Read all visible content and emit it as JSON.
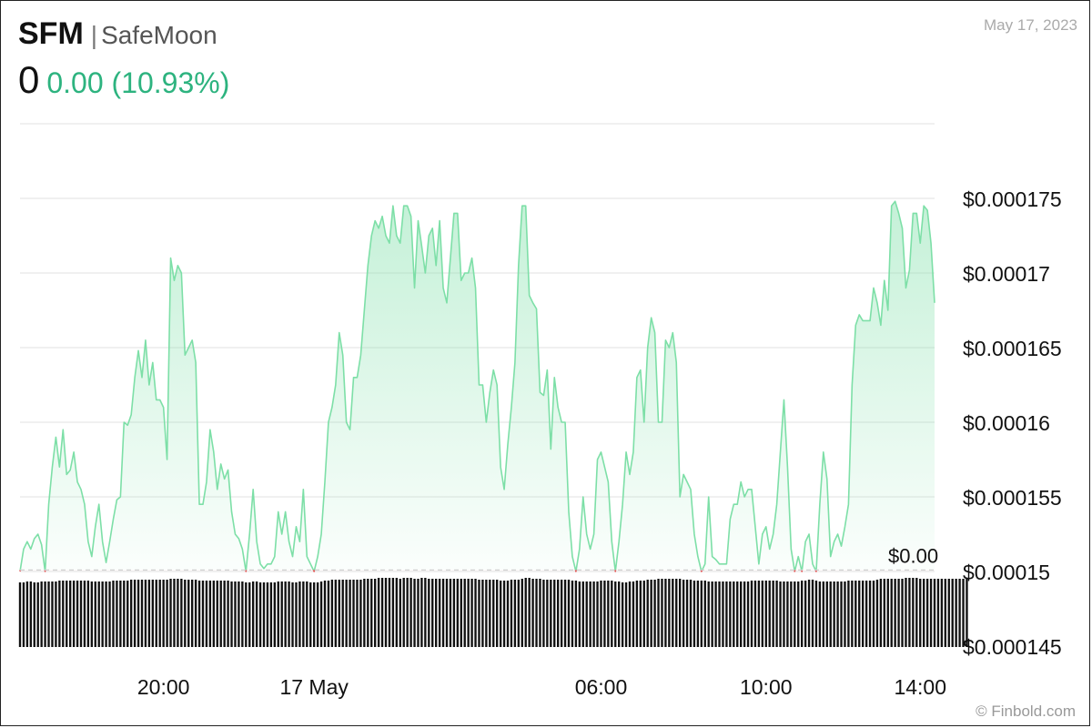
{
  "header": {
    "ticker": "SFM",
    "separator": "|",
    "name": "SafeMoon",
    "price": "0",
    "change": "0.00 (10.93%)",
    "date": "May 17, 2023"
  },
  "credit": "© Finbold.com",
  "colors": {
    "up": "#7ddfa7",
    "down": "#e45a5a",
    "change_text": "#2db37f",
    "grid": "#e1e1e1",
    "volume": "#111111"
  },
  "chart_data": {
    "type": "area",
    "title": "",
    "xlabel": "",
    "ylabel": "",
    "ylim": [
      0.000143,
      0.00018
    ],
    "baseline": {
      "value": 0.0001501,
      "label": "$0.00"
    },
    "y_ticks": [
      {
        "value": 0.000175,
        "label": "$0.000175"
      },
      {
        "value": 0.00017,
        "label": "$0.00017"
      },
      {
        "value": 0.000165,
        "label": "$0.000165"
      },
      {
        "value": 0.00016,
        "label": "$0.00016"
      },
      {
        "value": 0.000155,
        "label": "$0.000155"
      },
      {
        "value": 0.00015,
        "label": "$0.00015"
      },
      {
        "value": 0.000145,
        "label": "$0.000145"
      }
    ],
    "x_ticks": [
      {
        "index": 40,
        "label": "20:00"
      },
      {
        "index": 82,
        "label": "17 May"
      },
      {
        "index": 162,
        "label": "06:00"
      },
      {
        "index": 208,
        "label": "10:00"
      },
      {
        "index": 251,
        "label": "14:00"
      }
    ],
    "series": [
      {
        "values": [
          0.00015,
          0.0001515,
          0.000152,
          0.0001515,
          0.0001522,
          0.0001525,
          0.0001518,
          0.00015,
          0.0001545,
          0.000157,
          0.000159,
          0.000157,
          0.0001595,
          0.0001565,
          0.0001568,
          0.000158,
          0.000156,
          0.0001555,
          0.0001545,
          0.000152,
          0.000151,
          0.000153,
          0.0001545,
          0.000152,
          0.0001506,
          0.000152,
          0.0001535,
          0.0001548,
          0.000155,
          0.00016,
          0.0001598,
          0.0001605,
          0.000163,
          0.0001648,
          0.000163,
          0.0001655,
          0.0001625,
          0.000164,
          0.0001615,
          0.0001615,
          0.000161,
          0.0001575,
          0.000171,
          0.0001695,
          0.0001705,
          0.00017,
          0.0001645,
          0.000165,
          0.0001655,
          0.000164,
          0.0001545,
          0.0001545,
          0.000156,
          0.0001595,
          0.000158,
          0.0001555,
          0.0001572,
          0.0001562,
          0.0001568,
          0.000154,
          0.0001525,
          0.0001522,
          0.0001515,
          0.00015,
          0.0001525,
          0.0001555,
          0.000152,
          0.0001505,
          0.0001502,
          0.0001505,
          0.0001505,
          0.000151,
          0.000154,
          0.0001525,
          0.000154,
          0.000152,
          0.000151,
          0.000153,
          0.000152,
          0.0001555,
          0.000151,
          0.0001505,
          0.00015,
          0.000151,
          0.0001525,
          0.000156,
          0.00016,
          0.000161,
          0.0001625,
          0.000166,
          0.0001645,
          0.00016,
          0.0001595,
          0.000163,
          0.000163,
          0.0001645,
          0.0001675,
          0.0001705,
          0.0001725,
          0.0001735,
          0.000173,
          0.0001738,
          0.0001725,
          0.000172,
          0.0001745,
          0.0001725,
          0.000172,
          0.0001745,
          0.0001745,
          0.0001738,
          0.000169,
          0.0001735,
          0.0001718,
          0.00017,
          0.0001725,
          0.000173,
          0.0001705,
          0.0001735,
          0.000169,
          0.000168,
          0.000171,
          0.000174,
          0.000174,
          0.0001695,
          0.00017,
          0.00017,
          0.000171,
          0.000169,
          0.0001625,
          0.0001625,
          0.00016,
          0.000162,
          0.0001635,
          0.0001625,
          0.000157,
          0.0001555,
          0.0001585,
          0.000161,
          0.000164,
          0.0001705,
          0.0001745,
          0.0001745,
          0.0001685,
          0.000168,
          0.0001676,
          0.000162,
          0.0001618,
          0.0001635,
          0.0001582,
          0.000163,
          0.000161,
          0.00016,
          0.00016,
          0.000154,
          0.000151,
          0.00015,
          0.0001515,
          0.000155,
          0.0001525,
          0.0001515,
          0.0001525,
          0.0001575,
          0.000158,
          0.000157,
          0.000156,
          0.000152,
          0.00015,
          0.000152,
          0.0001545,
          0.000158,
          0.0001565,
          0.000158,
          0.000163,
          0.0001635,
          0.00016,
          0.000165,
          0.000167,
          0.000166,
          0.00016,
          0.00016,
          0.0001655,
          0.000165,
          0.000166,
          0.000164,
          0.000155,
          0.0001565,
          0.000156,
          0.0001555,
          0.0001525,
          0.000151,
          0.00015,
          0.0001505,
          0.000155,
          0.000151,
          0.0001508,
          0.0001505,
          0.0001505,
          0.0001505,
          0.0001535,
          0.0001545,
          0.0001545,
          0.000156,
          0.000155,
          0.0001555,
          0.0001555,
          0.000153,
          0.0001505,
          0.0001525,
          0.000153,
          0.0001515,
          0.0001525,
          0.0001545,
          0.000158,
          0.0001615,
          0.000157,
          0.0001515,
          0.00015,
          0.000151,
          0.00015,
          0.000152,
          0.0001525,
          0.0001505,
          0.00015,
          0.0001545,
          0.000158,
          0.0001562,
          0.000151,
          0.000152,
          0.0001525,
          0.0001517,
          0.000153,
          0.0001545,
          0.0001625,
          0.0001665,
          0.0001672,
          0.0001668,
          0.0001668,
          0.0001668,
          0.000169,
          0.000168,
          0.0001665,
          0.0001695,
          0.0001675,
          0.0001745,
          0.0001748,
          0.000174,
          0.000173,
          0.000169,
          0.0001702,
          0.000174,
          0.000174,
          0.000172,
          0.0001745,
          0.0001742,
          0.000172,
          0.000168
        ]
      }
    ],
    "volume": [
      57,
      57,
      58,
      58,
      57,
      57,
      58,
      58,
      58,
      58,
      58,
      59,
      59,
      59,
      59,
      59,
      59,
      59,
      59,
      59,
      58,
      58,
      58,
      58,
      58,
      58,
      59,
      59,
      59,
      59,
      59,
      60,
      60,
      60,
      60,
      60,
      60,
      60,
      60,
      60,
      60,
      60,
      61,
      61,
      61,
      61,
      60,
      60,
      60,
      60,
      59,
      59,
      59,
      59,
      59,
      59,
      59,
      59,
      59,
      58,
      58,
      58,
      58,
      57,
      57,
      58,
      58,
      57,
      57,
      57,
      57,
      57,
      58,
      58,
      58,
      58,
      57,
      57,
      58,
      58,
      58,
      57,
      57,
      57,
      58,
      59,
      59,
      60,
      60,
      60,
      60,
      60,
      60,
      60,
      60,
      60,
      61,
      61,
      61,
      61,
      62,
      62,
      62,
      62,
      62,
      62,
      61,
      62,
      62,
      62,
      61,
      61,
      62,
      62,
      61,
      61,
      61,
      61,
      61,
      61,
      61,
      61,
      61,
      61,
      61,
      61,
      61,
      61,
      60,
      60,
      60,
      60,
      60,
      60,
      59,
      59,
      59,
      60,
      60,
      60,
      61,
      62,
      62,
      61,
      61,
      61,
      60,
      60,
      60,
      60,
      60,
      60,
      60,
      60,
      59,
      59,
      58,
      58,
      58,
      58,
      58,
      58,
      59,
      59,
      59,
      59,
      58,
      58,
      57,
      57,
      58,
      58,
      59,
      59,
      59,
      60,
      60,
      60,
      61,
      61,
      61,
      61,
      61,
      61,
      61,
      60,
      60,
      60,
      59,
      59,
      59,
      59,
      58,
      58,
      58,
      58,
      58,
      58,
      58,
      58,
      58,
      58,
      58,
      58,
      59,
      59,
      59,
      59,
      59,
      59,
      59,
      59,
      58,
      58,
      58,
      58,
      58,
      58,
      59,
      59,
      60,
      60,
      59,
      58,
      58,
      58,
      58,
      58,
      58,
      58,
      58,
      59,
      59,
      59,
      59,
      59,
      59,
      59,
      59,
      60,
      61,
      61,
      61,
      61,
      61,
      61,
      61,
      62,
      62,
      62,
      62,
      61,
      61,
      61,
      61,
      61,
      61,
      61,
      61,
      61,
      61,
      61,
      61,
      61,
      61
    ]
  }
}
